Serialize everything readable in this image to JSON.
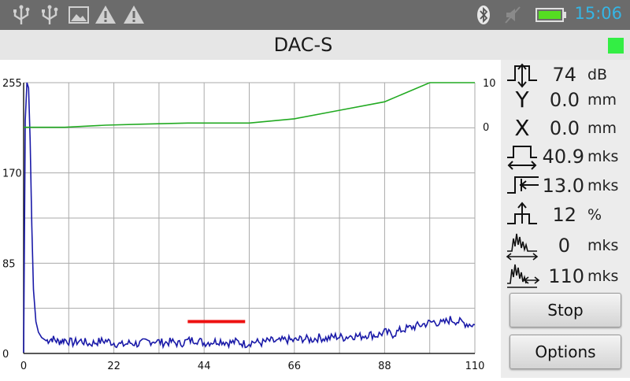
{
  "status_bar": {
    "time": "15:06",
    "icons": [
      "usb-icon",
      "usb-icon",
      "image-icon",
      "warning-icon",
      "warning-icon",
      "bluetooth-icon",
      "mute-icon",
      "battery-icon"
    ]
  },
  "title": "DAC-S",
  "indicator_color": "#33ee44",
  "chart_data": {
    "type": "line",
    "x_ticks": [
      "0",
      "22",
      "44",
      "66",
      "88",
      "110"
    ],
    "y_left_ticks": [
      "255",
      "170",
      "85",
      "0"
    ],
    "y_right_ticks": [
      "10",
      "0"
    ],
    "xlim": [
      0,
      110
    ],
    "ylim_left": [
      0,
      255
    ],
    "grid": true,
    "series": [
      {
        "color": "#1a1aa8",
        "x": [
          0,
          0.4,
          0.8,
          1.2,
          1.6,
          2.0,
          2.4,
          3,
          3.6,
          4.4,
          5.5,
          7,
          8.5,
          10,
          12,
          14,
          16,
          18,
          20,
          22,
          24,
          26,
          28,
          30,
          32,
          34,
          36,
          38,
          40,
          42,
          44,
          46,
          48,
          50,
          52,
          54,
          56,
          58,
          60,
          62,
          64,
          66,
          68,
          70,
          72,
          74,
          76,
          78,
          80,
          82,
          84,
          86,
          88,
          90,
          92,
          94,
          96,
          98,
          100,
          102,
          104,
          106,
          108,
          110
        ],
        "y": [
          0,
          220,
          255,
          250,
          200,
          120,
          60,
          30,
          20,
          15,
          12,
          14,
          11,
          13,
          10,
          12,
          9,
          11,
          12,
          10,
          8,
          10,
          9,
          11,
          12,
          10,
          11,
          9,
          12,
          13,
          10,
          11,
          12,
          10,
          11,
          9,
          11,
          10,
          12,
          11,
          13,
          12,
          14,
          13,
          15,
          14,
          16,
          15,
          17,
          16,
          18,
          17,
          20,
          18,
          22,
          24,
          26,
          28,
          30,
          28,
          32,
          30,
          28,
          27
        ]
      },
      {
        "color": "#22aa22",
        "x": [
          0,
          10,
          20,
          30,
          40,
          55,
          66,
          77,
          88,
          99,
          110
        ],
        "y": [
          213,
          213,
          215,
          216,
          217,
          217,
          221,
          229,
          237,
          255,
          255
        ]
      }
    ],
    "gate": {
      "x_start": 40,
      "x_end": 54,
      "level": 30,
      "color": "#ee1111"
    }
  },
  "params": [
    {
      "icon": "gain-icon",
      "value": "74",
      "unit": "dB"
    },
    {
      "icon": "y-coordinate-icon",
      "value": "0.0",
      "unit": "mm"
    },
    {
      "icon": "x-coordinate-icon",
      "value": "0.0",
      "unit": "mm"
    },
    {
      "icon": "gate-width-icon",
      "value": "40.9",
      "unit": "mks"
    },
    {
      "icon": "gate-start-icon",
      "value": "13.0",
      "unit": "mks"
    },
    {
      "icon": "gate-level-icon",
      "value": "12",
      "unit": "%"
    },
    {
      "icon": "delay-icon",
      "value": "0",
      "unit": "mks"
    },
    {
      "icon": "sweep-icon",
      "value": "110",
      "unit": "mks"
    }
  ],
  "y_axis_letter": "Y",
  "x_axis_letter": "X",
  "buttons": {
    "stop": "Stop",
    "options": "Options"
  }
}
